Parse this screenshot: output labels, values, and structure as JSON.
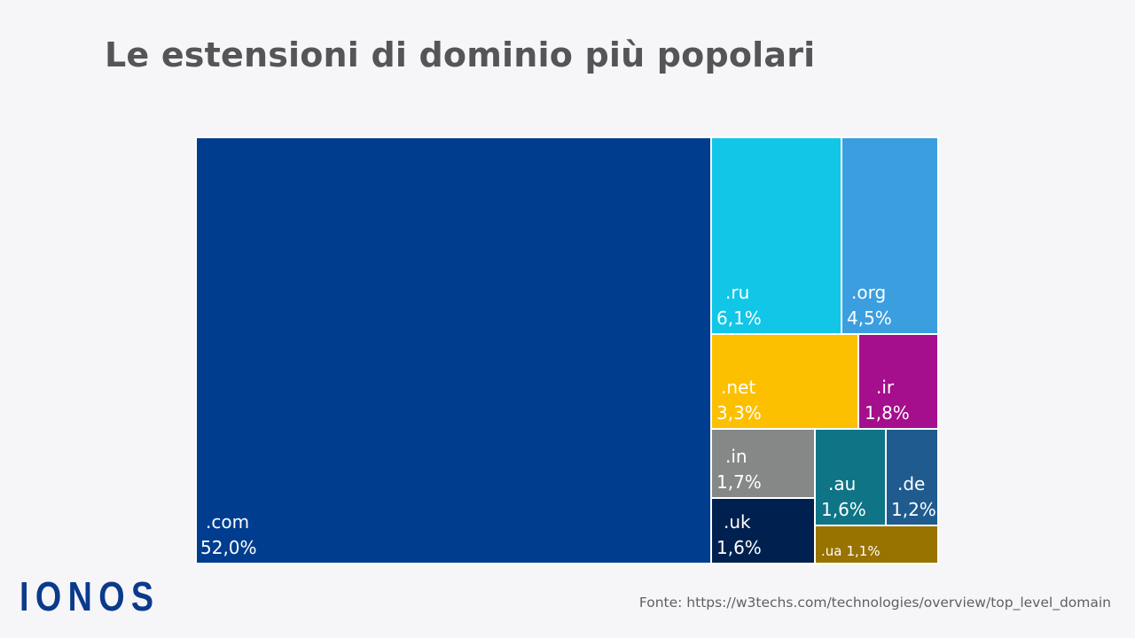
{
  "brand": {
    "logo_text": "IONOS"
  },
  "source_text": "Fonte: https://w3techs.com/technologies/overview/top_level_domain",
  "chart_data": {
    "type": "treemap",
    "title": "Le estensioni di dominio più popolari",
    "unit": "%",
    "items": [
      {
        "id": "com",
        "label": ".com",
        "value": 52.0,
        "value_label": "52,0%",
        "color": "#003d8f"
      },
      {
        "id": "ru",
        "label": ".ru",
        "value": 6.1,
        "value_label": "6,1%",
        "color": "#11c6e6"
      },
      {
        "id": "org",
        "label": ".org",
        "value": 4.5,
        "value_label": "4,5%",
        "color": "#3b9ede"
      },
      {
        "id": "net",
        "label": ".net",
        "value": 3.3,
        "value_label": "3,3%",
        "color": "#fcc000"
      },
      {
        "id": "ir",
        "label": ".ir",
        "value": 1.8,
        "value_label": "1,8%",
        "color": "#a50e8c"
      },
      {
        "id": "in",
        "label": ".in",
        "value": 1.7,
        "value_label": "1,7%",
        "color": "#868888"
      },
      {
        "id": "au",
        "label": ".au",
        "value": 1.6,
        "value_label": "1,6%",
        "color": "#0e7486"
      },
      {
        "id": "de",
        "label": ".de",
        "value": 1.2,
        "value_label": "1,2%",
        "color": "#1f5b8e"
      },
      {
        "id": "uk",
        "label": ".uk",
        "value": 1.6,
        "value_label": "1,6%",
        "color": "#00214f"
      },
      {
        "id": "ua",
        "label": ".ua",
        "value": 1.1,
        "value_label": "1,1%",
        "color": "#987300"
      }
    ]
  }
}
